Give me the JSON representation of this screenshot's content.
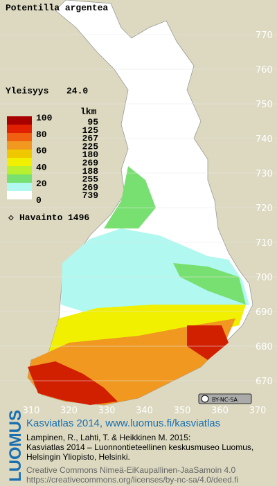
{
  "title": "Potentilla argentea",
  "frequency": {
    "label": "Yleisyys",
    "value": "24.0"
  },
  "legend": {
    "count_header": "lkm",
    "scale_labels": [
      100,
      80,
      60,
      40,
      20,
      0
    ],
    "classes": [
      {
        "color": "#a80000",
        "count": 95
      },
      {
        "color": "#e02000",
        "count": 125
      },
      {
        "color": "#f06010",
        "count": 267
      },
      {
        "color": "#f09820",
        "count": 225
      },
      {
        "color": "#f0c800",
        "count": 180
      },
      {
        "color": "#f0f000",
        "count": 269
      },
      {
        "color": "#b8f030",
        "count": 188
      },
      {
        "color": "#78e070",
        "count": 255
      },
      {
        "color": "#b0f8f0",
        "count": 269
      },
      {
        "color": "#ffffff",
        "count": 739
      }
    ]
  },
  "observations": {
    "label": "Havainto",
    "count": 1496
  },
  "grid": {
    "north": [
      770,
      760,
      750,
      740,
      730,
      720,
      710,
      700,
      690,
      680,
      670
    ],
    "east": [
      310,
      320,
      330,
      340,
      350,
      360,
      370
    ]
  },
  "license_badge": "BY-NC-SA",
  "footer": {
    "brand": "LUOMUS",
    "heading": "Kasviatlas 2014, www.luomus.fi/kasviatlas",
    "citation": [
      "Lampinen, R., Lahti, T. & Heikkinen M. 2015:",
      "Kasviatlas 2014 – Luonnontieteellinen keskusmuseo Luomus,",
      "Helsingin Yliopisto, Helsinki."
    ],
    "license": [
      "Creative Commons Nimeä-EiKaupallinen-JaaSamoin 4.0",
      "https://creativecommons.org/licenses/by-nc-sa/4.0/deed.fi"
    ]
  }
}
